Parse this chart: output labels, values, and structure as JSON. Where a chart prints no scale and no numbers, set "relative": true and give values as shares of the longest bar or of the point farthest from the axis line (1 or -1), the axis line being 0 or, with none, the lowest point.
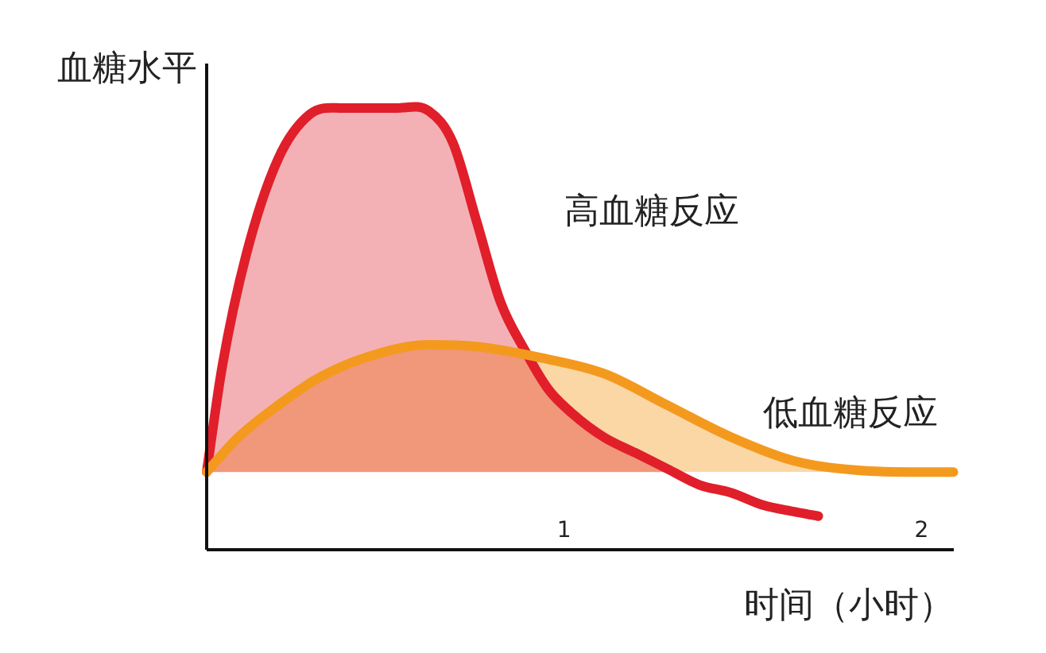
{
  "chart_data": {
    "type": "area",
    "ylabel": "血糖水平",
    "xlabel": "时间（小时）",
    "relative": true,
    "xlim": [
      0,
      2.09
    ],
    "xticks": [
      1,
      2
    ],
    "series": [
      {
        "name": "高血糖反应",
        "color": "#e01f2b",
        "x": [
          0,
          0.044,
          0.111,
          0.2,
          0.289,
          0.378,
          0.533,
          0.622,
          0.689,
          0.756,
          0.822,
          0.889,
          0.956,
          1.022,
          1.111,
          1.2,
          1.289,
          1.378,
          1.467,
          1.556,
          1.644,
          1.711
        ],
        "values": [
          0.176,
          0.417,
          0.669,
          0.885,
          0.986,
          1,
          1,
          0.993,
          0.921,
          0.741,
          0.561,
          0.453,
          0.363,
          0.309,
          0.255,
          0.219,
          0.183,
          0.147,
          0.129,
          0.101,
          0.086,
          0.076
        ]
      },
      {
        "name": "低血糖反应",
        "color": "#f39a1e",
        "x": [
          0,
          0.089,
          0.2,
          0.311,
          0.444,
          0.622,
          0.756,
          0.933,
          1.111,
          1.289,
          1.467,
          1.644,
          1.822,
          2.0,
          2.089
        ],
        "values": [
          0.176,
          0.255,
          0.327,
          0.388,
          0.435,
          0.464,
          0.46,
          0.435,
          0.399,
          0.327,
          0.255,
          0.201,
          0.18,
          0.176,
          0.176
        ]
      }
    ]
  }
}
